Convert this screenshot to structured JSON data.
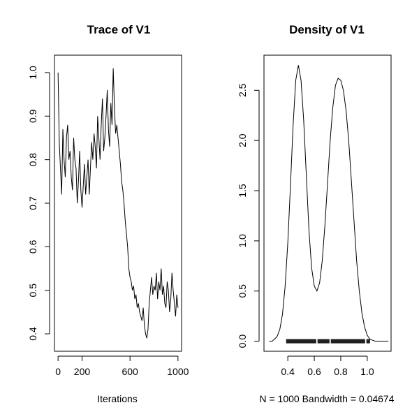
{
  "chart_data": [
    {
      "type": "line",
      "title": "Trace of V1",
      "xlabel": "Iterations",
      "ylabel": "",
      "xlim": [
        -30,
        1030
      ],
      "ylim": [
        0.36,
        1.04
      ],
      "xticks": [
        0,
        200,
        600,
        1000
      ],
      "xtick_labels": [
        "0",
        "200",
        "600",
        "1000"
      ],
      "yticks": [
        0.4,
        0.5,
        0.6,
        0.7,
        0.8,
        0.9,
        1.0
      ],
      "ytick_labels": [
        "0.4",
        "0.5",
        "0.6",
        "0.7",
        "0.8",
        "0.9",
        "1.0"
      ],
      "grid": false,
      "series": [
        {
          "color": "#000000",
          "x": [
            0,
            10,
            20,
            30,
            40,
            50,
            60,
            70,
            80,
            90,
            100,
            110,
            120,
            130,
            140,
            150,
            160,
            170,
            180,
            190,
            200,
            210,
            220,
            230,
            240,
            250,
            260,
            270,
            280,
            290,
            300,
            310,
            320,
            330,
            340,
            350,
            360,
            370,
            380,
            390,
            400,
            410,
            420,
            430,
            440,
            450,
            460,
            470,
            480,
            490,
            500,
            510,
            520,
            530,
            540,
            550,
            560,
            570,
            580,
            590,
            600,
            610,
            620,
            630,
            640,
            650,
            660,
            670,
            680,
            690,
            700,
            710,
            720,
            730,
            740,
            750,
            760,
            770,
            780,
            790,
            800,
            810,
            820,
            830,
            840,
            850,
            860,
            870,
            880,
            890,
            900,
            910,
            920,
            930,
            940,
            950,
            960,
            970,
            980,
            990,
            1000
          ],
          "y": [
            1.0,
            0.84,
            0.78,
            0.72,
            0.87,
            0.8,
            0.76,
            0.85,
            0.88,
            0.8,
            0.82,
            0.76,
            0.73,
            0.85,
            0.8,
            0.78,
            0.7,
            0.75,
            0.82,
            0.73,
            0.69,
            0.74,
            0.79,
            0.72,
            0.76,
            0.8,
            0.72,
            0.78,
            0.84,
            0.8,
            0.86,
            0.83,
            0.78,
            0.9,
            0.85,
            0.8,
            0.88,
            0.94,
            0.82,
            0.85,
            0.9,
            0.96,
            0.87,
            0.83,
            0.93,
            0.88,
            1.01,
            0.92,
            0.86,
            0.88,
            0.85,
            0.82,
            0.79,
            0.75,
            0.73,
            0.7,
            0.66,
            0.63,
            0.6,
            0.55,
            0.53,
            0.52,
            0.5,
            0.51,
            0.48,
            0.49,
            0.46,
            0.47,
            0.45,
            0.44,
            0.43,
            0.46,
            0.42,
            0.4,
            0.39,
            0.41,
            0.47,
            0.5,
            0.53,
            0.49,
            0.51,
            0.5,
            0.54,
            0.48,
            0.52,
            0.5,
            0.55,
            0.49,
            0.51,
            0.47,
            0.46,
            0.52,
            0.5,
            0.45,
            0.48,
            0.54,
            0.5,
            0.47,
            0.44,
            0.49,
            0.46
          ]
        }
      ]
    },
    {
      "type": "line",
      "title": "Density of V1",
      "xlabel": "N = 1000   Bandwidth = 0.04674",
      "ylabel": "",
      "xlim": [
        0.22,
        1.18
      ],
      "ylim": [
        -0.1,
        2.85
      ],
      "xticks": [
        0.4,
        0.6,
        0.8,
        1.0
      ],
      "xtick_labels": [
        "0.4",
        "0.6",
        "0.8",
        "1.0"
      ],
      "yticks": [
        0.0,
        0.5,
        1.0,
        1.5,
        2.0,
        2.5
      ],
      "ytick_labels": [
        "0.0",
        "0.5",
        "1.0",
        "1.5",
        "2.0",
        "2.5"
      ],
      "grid": false,
      "series": [
        {
          "color": "#000000",
          "x": [
            0.26,
            0.28,
            0.3,
            0.32,
            0.34,
            0.36,
            0.38,
            0.4,
            0.42,
            0.44,
            0.46,
            0.48,
            0.5,
            0.52,
            0.54,
            0.56,
            0.58,
            0.6,
            0.62,
            0.64,
            0.66,
            0.68,
            0.7,
            0.72,
            0.74,
            0.76,
            0.78,
            0.8,
            0.82,
            0.84,
            0.86,
            0.88,
            0.9,
            0.92,
            0.94,
            0.96,
            0.98,
            1.0,
            1.02,
            1.04,
            1.06,
            1.08,
            1.1,
            1.12,
            1.14,
            1.16
          ],
          "y": [
            0.0,
            0.0,
            0.02,
            0.05,
            0.12,
            0.27,
            0.55,
            0.98,
            1.55,
            2.15,
            2.6,
            2.75,
            2.6,
            2.2,
            1.65,
            1.1,
            0.73,
            0.55,
            0.5,
            0.58,
            0.8,
            1.15,
            1.57,
            2.0,
            2.33,
            2.55,
            2.62,
            2.6,
            2.5,
            2.3,
            2.0,
            1.6,
            1.2,
            0.8,
            0.5,
            0.28,
            0.14,
            0.06,
            0.02,
            0.01,
            0.0,
            0.0,
            0.0,
            0.0,
            0.0,
            0.0
          ]
        }
      ],
      "rug_range": [
        0.39,
        1.02
      ]
    }
  ]
}
